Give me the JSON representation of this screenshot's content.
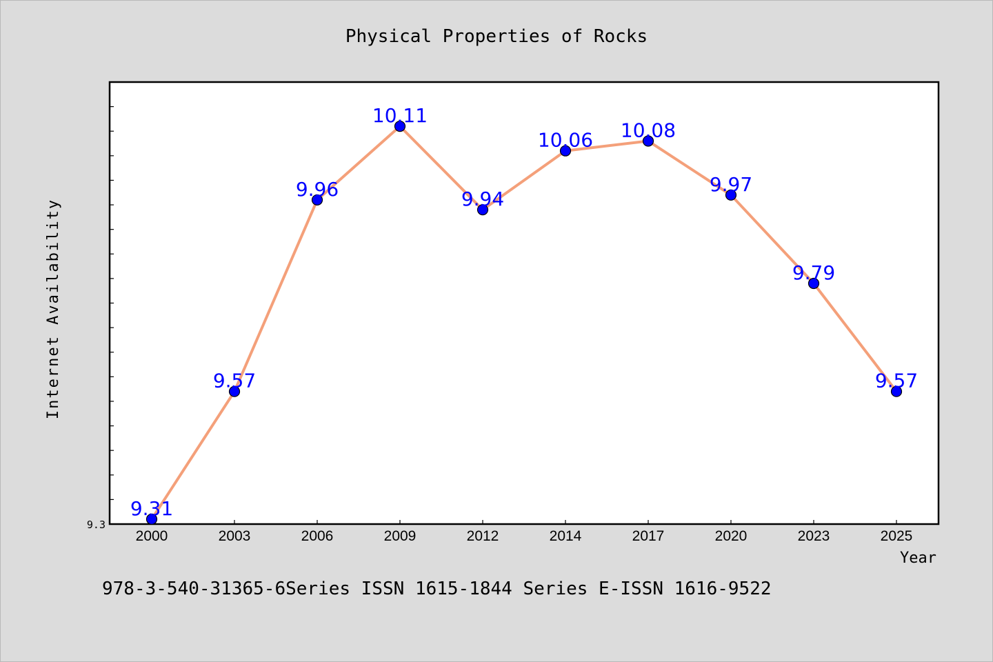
{
  "chart_data": {
    "type": "line",
    "title": "Physical Properties of Rocks",
    "xlabel": "Year",
    "ylabel": "Internet Availability",
    "categories": [
      "2000",
      "2003",
      "2006",
      "2009",
      "2012",
      "2014",
      "2017",
      "2020",
      "2023",
      "2025"
    ],
    "values": [
      9.31,
      9.57,
      9.96,
      10.11,
      9.94,
      10.06,
      10.08,
      9.97,
      9.79,
      9.57
    ],
    "data_labels": [
      "9.31",
      "9.57",
      "9.96",
      "10.11",
      "9.94",
      "10.06",
      "10.08",
      "9.97",
      "9.79",
      "9.57"
    ],
    "ylim": [
      9.3,
      10.2
    ],
    "yticks_labeled": [
      "9.3"
    ],
    "line_color": "#f4a07a",
    "marker_color": "#0000ff",
    "label_color": "#0000ff",
    "plot_background": "#ffffff",
    "figure_background": "#dcdcdc",
    "grid": false,
    "footnote": "978-3-540-31365-6Series ISSN 1615-1844 Series E-ISSN 1616-9522"
  }
}
